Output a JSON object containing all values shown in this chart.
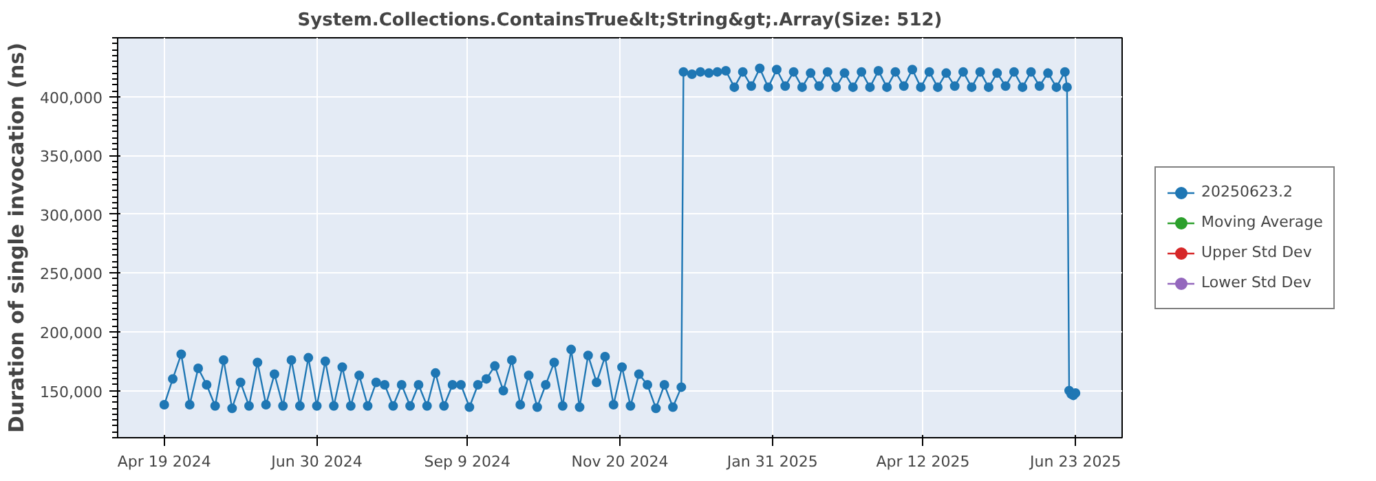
{
  "chart_data": {
    "type": "line",
    "title": "System.Collections.ContainsTrue&lt;String&gt;.Array(Size: 512)",
    "ylabel": "Duration of single invocation (ns)",
    "xlim": [
      "2024-03-28",
      "2025-07-15"
    ],
    "xticks": [
      {
        "value": "2024-04-19",
        "label": "Apr 19 2024"
      },
      {
        "value": "2024-06-30",
        "label": "Jun 30 2024"
      },
      {
        "value": "2024-09-09",
        "label": "Sep 9 2024"
      },
      {
        "value": "2024-11-20",
        "label": "Nov 20 2024"
      },
      {
        "value": "2025-01-31",
        "label": "Jan 31 2025"
      },
      {
        "value": "2025-04-12",
        "label": "Apr 12 2025"
      },
      {
        "value": "2025-06-23",
        "label": "Jun 23 2025"
      }
    ],
    "ylim": [
      110000,
      450000
    ],
    "yticks": [
      {
        "value": 150000,
        "label": "150,000"
      },
      {
        "value": 200000,
        "label": "200,000"
      },
      {
        "value": 250000,
        "label": "250,000"
      },
      {
        "value": 300000,
        "label": "300,000"
      },
      {
        "value": 350000,
        "label": "350,000"
      },
      {
        "value": 400000,
        "label": "400,000"
      }
    ],
    "grid": true,
    "legend": "right",
    "marker": "circle",
    "line_style": "solid",
    "x": [
      "2024-04-19",
      "2024-04-23",
      "2024-04-27",
      "2024-05-01",
      "2024-05-05",
      "2024-05-09",
      "2024-05-13",
      "2024-05-17",
      "2024-05-21",
      "2024-05-25",
      "2024-05-29",
      "2024-06-02",
      "2024-06-06",
      "2024-06-10",
      "2024-06-14",
      "2024-06-18",
      "2024-06-22",
      "2024-06-26",
      "2024-06-30",
      "2024-07-04",
      "2024-07-08",
      "2024-07-12",
      "2024-07-16",
      "2024-07-20",
      "2024-07-24",
      "2024-07-28",
      "2024-08-01",
      "2024-08-05",
      "2024-08-09",
      "2024-08-13",
      "2024-08-17",
      "2024-08-21",
      "2024-08-25",
      "2024-08-29",
      "2024-09-02",
      "2024-09-06",
      "2024-09-10",
      "2024-09-14",
      "2024-09-18",
      "2024-09-22",
      "2024-09-26",
      "2024-09-30",
      "2024-10-04",
      "2024-10-08",
      "2024-10-12",
      "2024-10-16",
      "2024-10-20",
      "2024-10-24",
      "2024-10-28",
      "2024-11-01",
      "2024-11-05",
      "2024-11-09",
      "2024-11-13",
      "2024-11-17",
      "2024-11-21",
      "2024-11-25",
      "2024-11-29",
      "2024-12-03",
      "2024-12-07",
      "2024-12-11",
      "2024-12-15",
      "2024-12-19",
      "2024-12-20",
      "2024-12-24",
      "2024-12-28",
      "2025-01-01",
      "2025-01-05",
      "2025-01-09",
      "2025-01-13",
      "2025-01-17",
      "2025-01-21",
      "2025-01-25",
      "2025-01-29",
      "2025-02-02",
      "2025-02-06",
      "2025-02-10",
      "2025-02-14",
      "2025-02-18",
      "2025-02-22",
      "2025-02-26",
      "2025-03-02",
      "2025-03-06",
      "2025-03-10",
      "2025-03-14",
      "2025-03-18",
      "2025-03-22",
      "2025-03-26",
      "2025-03-30",
      "2025-04-03",
      "2025-04-07",
      "2025-04-11",
      "2025-04-15",
      "2025-04-19",
      "2025-04-23",
      "2025-04-27",
      "2025-05-01",
      "2025-05-05",
      "2025-05-09",
      "2025-05-13",
      "2025-05-17",
      "2025-05-21",
      "2025-05-25",
      "2025-05-29",
      "2025-06-02",
      "2025-06-06",
      "2025-06-10",
      "2025-06-14",
      "2025-06-18",
      "2025-06-19",
      "2025-06-20",
      "2025-06-21",
      "2025-06-22",
      "2025-06-23"
    ],
    "series": [
      {
        "name": "20250623.2",
        "color": "#1f77b4",
        "values": [
          138000,
          160000,
          181000,
          138000,
          169000,
          155000,
          137000,
          176000,
          135000,
          157000,
          137000,
          174000,
          138000,
          164000,
          137000,
          176000,
          137000,
          178000,
          137000,
          175000,
          137000,
          170000,
          137000,
          163000,
          137000,
          157000,
          155000,
          137000,
          155000,
          137000,
          155000,
          137000,
          165000,
          137000,
          155000,
          155000,
          136000,
          155000,
          160000,
          171000,
          150000,
          176000,
          138000,
          163000,
          136000,
          155000,
          174000,
          137000,
          185000,
          136000,
          180000,
          157000,
          179000,
          138000,
          170000,
          137000,
          164000,
          155000,
          135000,
          155000,
          136000,
          153000,
          421000,
          419000,
          421000,
          420000,
          421000,
          422000,
          408000,
          421000,
          409000,
          424000,
          408000,
          423000,
          409000,
          421000,
          408000,
          420000,
          409000,
          421000,
          408000,
          420000,
          408000,
          421000,
          408000,
          422000,
          408000,
          421000,
          409000,
          423000,
          408000,
          421000,
          408000,
          420000,
          409000,
          421000,
          408000,
          421000,
          408000,
          420000,
          409000,
          421000,
          408000,
          421000,
          409000,
          420000,
          408000,
          421000,
          408000,
          150000,
          147000,
          146000,
          148000
        ]
      },
      {
        "name": "Moving Average",
        "color": "#2ca02c",
        "values": [
          null,
          null,
          null,
          null,
          null,
          null,
          null,
          null,
          null,
          null,
          null,
          null,
          null,
          null,
          null,
          null,
          null,
          null,
          null,
          null,
          null,
          null,
          null,
          null,
          null,
          null,
          null,
          null,
          null,
          null,
          null,
          null,
          null,
          null,
          null,
          null,
          null,
          null,
          null,
          null,
          null,
          null,
          null,
          null,
          null,
          null,
          null,
          null,
          null,
          null,
          null,
          null,
          null,
          null,
          null,
          null,
          null,
          null,
          null,
          null,
          null,
          null,
          null,
          null,
          null,
          null,
          null,
          null,
          null,
          null,
          null,
          null,
          null,
          null,
          null,
          null,
          null,
          null,
          null,
          null,
          null,
          null,
          null,
          null,
          null,
          null,
          null,
          null,
          null,
          null,
          null,
          null,
          null,
          null,
          null,
          null,
          null,
          null,
          null,
          null,
          null,
          null,
          null,
          null,
          null,
          null,
          null,
          null,
          null,
          null,
          null,
          null,
          null
        ]
      },
      {
        "name": "Upper Std Dev",
        "color": "#d62728",
        "values": [
          null,
          null,
          null,
          null,
          null,
          null,
          null,
          null,
          null,
          null,
          null,
          null,
          null,
          null,
          null,
          null,
          null,
          null,
          null,
          null,
          null,
          null,
          null,
          null,
          null,
          null,
          null,
          null,
          null,
          null,
          null,
          null,
          null,
          null,
          null,
          null,
          null,
          null,
          null,
          null,
          null,
          null,
          null,
          null,
          null,
          null,
          null,
          null,
          null,
          null,
          null,
          null,
          null,
          null,
          null,
          null,
          null,
          null,
          null,
          null,
          null,
          null,
          null,
          null,
          null,
          null,
          null,
          null,
          null,
          null,
          null,
          null,
          null,
          null,
          null,
          null,
          null,
          null,
          null,
          null,
          null,
          null,
          null,
          null,
          null,
          null,
          null,
          null,
          null,
          null,
          null,
          null,
          null,
          null,
          null,
          null,
          null,
          null,
          null,
          null,
          null,
          null,
          null,
          null,
          null,
          null,
          null,
          null,
          null,
          null,
          null,
          null,
          null
        ]
      },
      {
        "name": "Lower Std Dev",
        "color": "#9467bd",
        "values": [
          null,
          null,
          null,
          null,
          null,
          null,
          null,
          null,
          null,
          null,
          null,
          null,
          null,
          null,
          null,
          null,
          null,
          null,
          null,
          null,
          null,
          null,
          null,
          null,
          null,
          null,
          null,
          null,
          null,
          null,
          null,
          null,
          null,
          null,
          null,
          null,
          null,
          null,
          null,
          null,
          null,
          null,
          null,
          null,
          null,
          null,
          null,
          null,
          null,
          null,
          null,
          null,
          null,
          null,
          null,
          null,
          null,
          null,
          null,
          null,
          null,
          null,
          null,
          null,
          null,
          null,
          null,
          null,
          null,
          null,
          null,
          null,
          null,
          null,
          null,
          null,
          null,
          null,
          null,
          null,
          null,
          null,
          null,
          null,
          null,
          null,
          null,
          null,
          null,
          null,
          null,
          null,
          null,
          null,
          null,
          null,
          null,
          null,
          null,
          null,
          null,
          null,
          null,
          null,
          null,
          null,
          null,
          null,
          null,
          null,
          null,
          null,
          null
        ]
      }
    ]
  }
}
